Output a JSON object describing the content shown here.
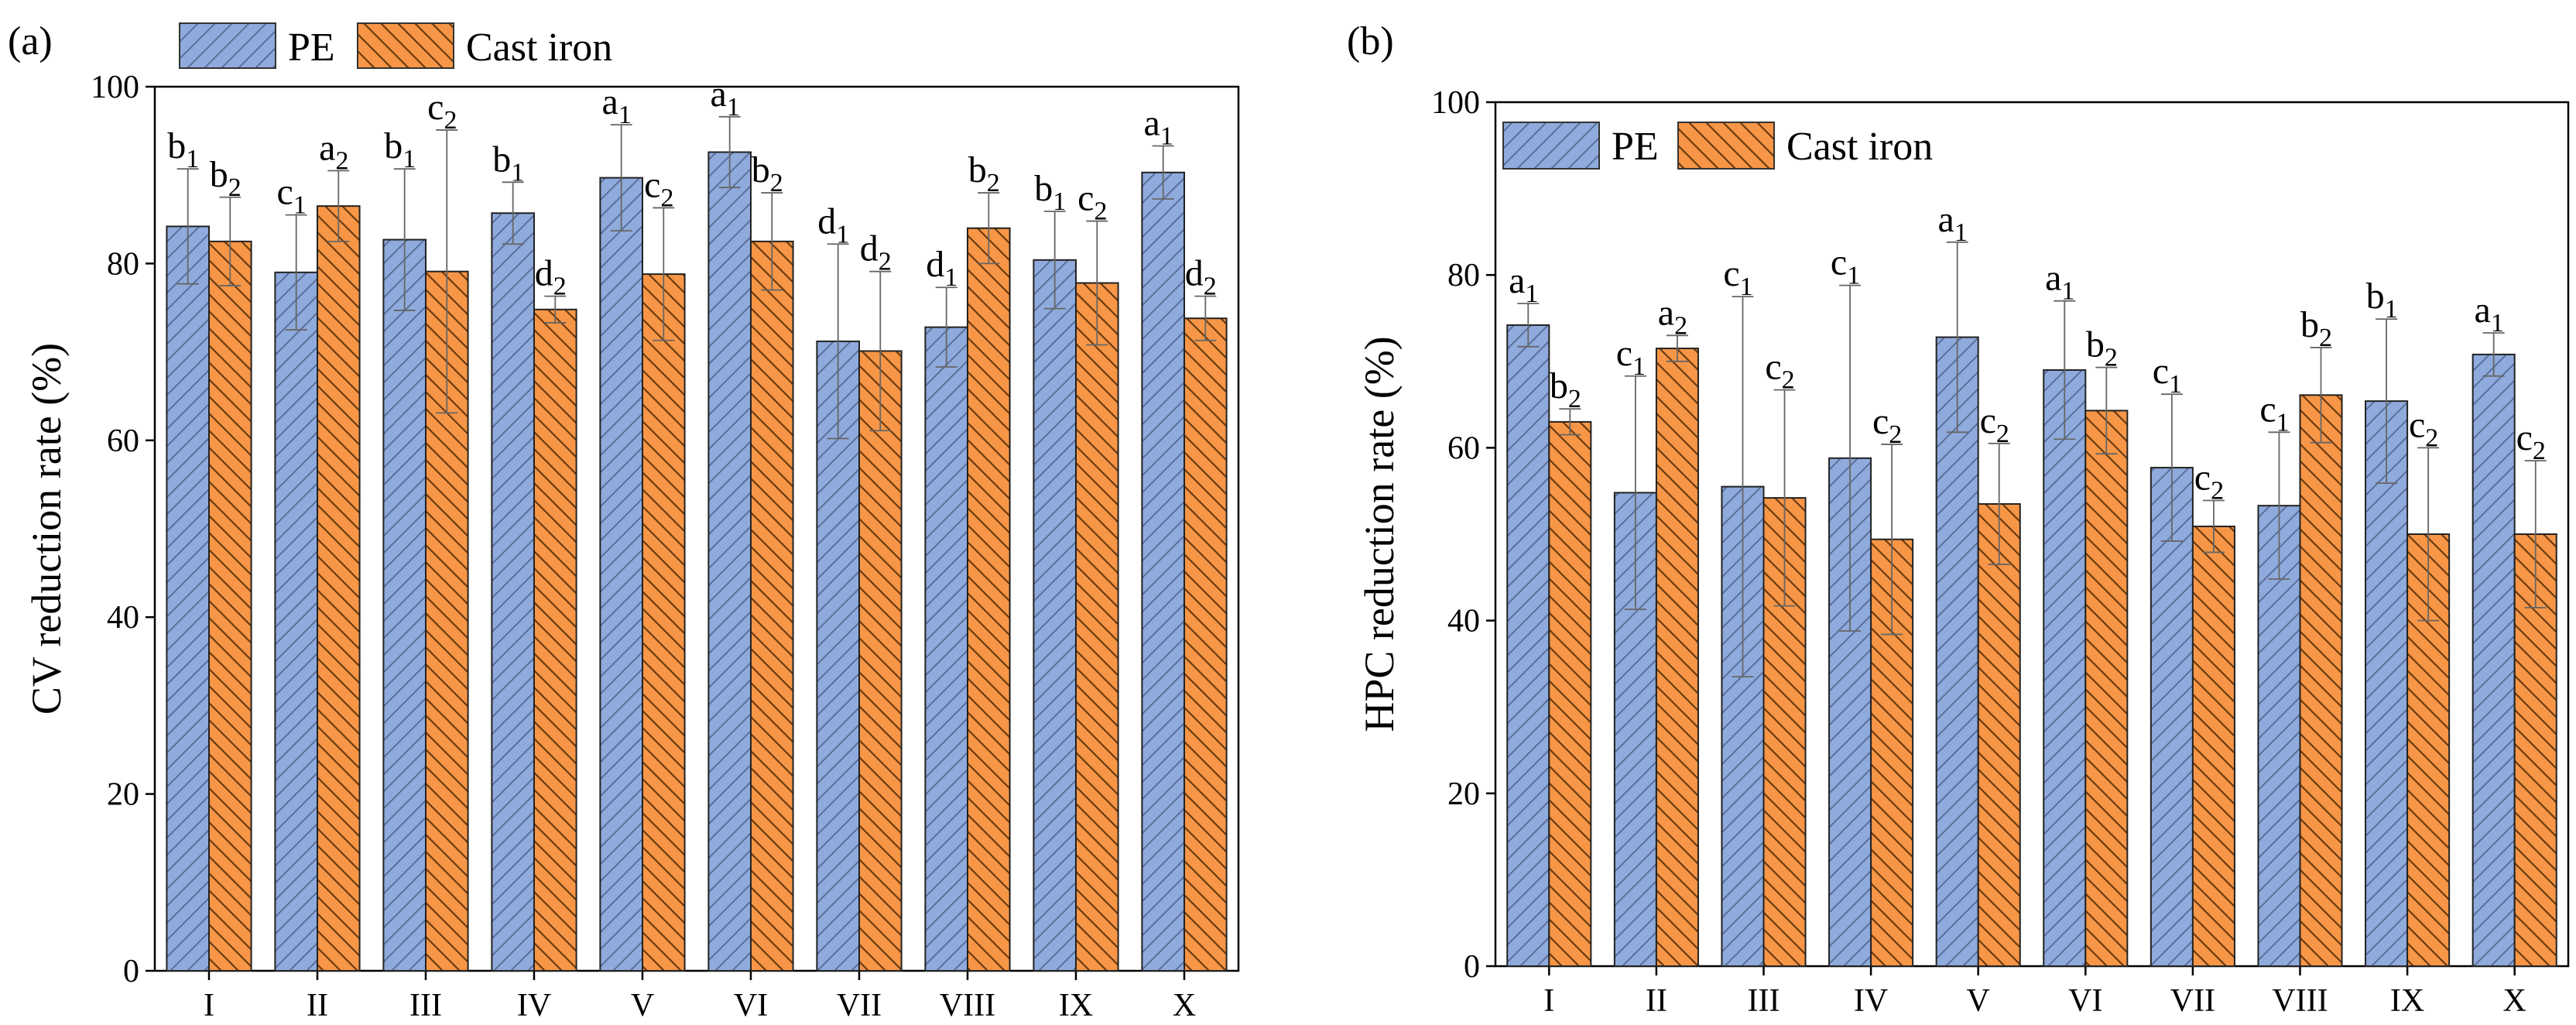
{
  "chart_data": [
    {
      "type": "bar",
      "panel_label": "(a)",
      "ylabel": "CV reduction rate (%)",
      "xlabel": "",
      "ylim": [
        0,
        100
      ],
      "yticks": [
        "0",
        "20",
        "40",
        "60",
        "80",
        "100"
      ],
      "categories": [
        "I",
        "II",
        "III",
        "IV",
        "V",
        "VI",
        "VII",
        "VIII",
        "IX",
        "X"
      ],
      "legend_position": "top-left",
      "series": [
        {
          "name": "PE",
          "color": "#8faadc",
          "values": [
            84.2,
            79,
            82.7,
            85.7,
            89.7,
            92.6,
            71.2,
            72.8,
            80.4,
            90.3
          ],
          "errors": [
            6.5,
            6.5,
            8,
            3.5,
            6,
            4,
            11,
            4.5,
            5.5,
            3
          ],
          "letters": [
            [
              "b",
              "1"
            ],
            [
              "c",
              "1"
            ],
            [
              "b",
              "1"
            ],
            [
              "b",
              "1"
            ],
            [
              "a",
              "1"
            ],
            [
              "a",
              "1"
            ],
            [
              "d",
              "1"
            ],
            [
              "d",
              "1"
            ],
            [
              "b",
              "1"
            ],
            [
              "a",
              "1"
            ]
          ]
        },
        {
          "name": "Cast iron",
          "color": "#f79646",
          "values": [
            82.5,
            86.5,
            79.1,
            74.8,
            78.8,
            82.5,
            70.1,
            84,
            77.8,
            73.8
          ],
          "errors": [
            5,
            4,
            16,
            1.5,
            7.5,
            5.5,
            9,
            4,
            7,
            2.5
          ],
          "letters": [
            [
              "b",
              "2"
            ],
            [
              "a",
              "2"
            ],
            [
              "c",
              "2"
            ],
            [
              "d",
              "2"
            ],
            [
              "c",
              "2"
            ],
            [
              "b",
              "2"
            ],
            [
              "d",
              "2"
            ],
            [
              "b",
              "2"
            ],
            [
              "c",
              "2"
            ],
            [
              "d",
              "2"
            ]
          ]
        }
      ]
    },
    {
      "type": "bar",
      "panel_label": "(b)",
      "ylabel": "HPC reduction rate (%)",
      "xlabel": "",
      "ylim": [
        0,
        100
      ],
      "yticks": [
        "0",
        "20",
        "40",
        "60",
        "80",
        "100"
      ],
      "categories": [
        "I",
        "II",
        "III",
        "IV",
        "V",
        "VI",
        "VII",
        "VIII",
        "IX",
        "X"
      ],
      "legend_position": "top-left",
      "series": [
        {
          "name": "PE",
          "color": "#8faadc",
          "values": [
            74.2,
            54.8,
            55.5,
            58.8,
            72.8,
            69,
            57.7,
            53.3,
            65.4,
            70.8
          ],
          "errors": [
            2.5,
            13.5,
            22,
            20,
            11,
            8,
            8.5,
            8.5,
            9.5,
            2.5
          ],
          "letters": [
            [
              "a",
              "1"
            ],
            [
              "c",
              "1"
            ],
            [
              "c",
              "1"
            ],
            [
              "c",
              "1"
            ],
            [
              "a",
              "1"
            ],
            [
              "a",
              "1"
            ],
            [
              "c",
              "1"
            ],
            [
              "c",
              "1"
            ],
            [
              "b",
              "1"
            ],
            [
              "a",
              "1"
            ]
          ]
        },
        {
          "name": "Cast iron",
          "color": "#f79646",
          "values": [
            63,
            71.5,
            54.2,
            49.4,
            53.5,
            64.3,
            50.9,
            66.1,
            50,
            50
          ],
          "errors": [
            1.5,
            1.5,
            12.5,
            11,
            7,
            5,
            3,
            5.5,
            10,
            8.5
          ],
          "letters": [
            [
              "b",
              "2"
            ],
            [
              "a",
              "2"
            ],
            [
              "c",
              "2"
            ],
            [
              "c",
              "2"
            ],
            [
              "c",
              "2"
            ],
            [
              "b",
              "2"
            ],
            [
              "c",
              "2"
            ],
            [
              "b",
              "2"
            ],
            [
              "c",
              "2"
            ],
            [
              "c",
              "2"
            ]
          ]
        }
      ]
    }
  ]
}
